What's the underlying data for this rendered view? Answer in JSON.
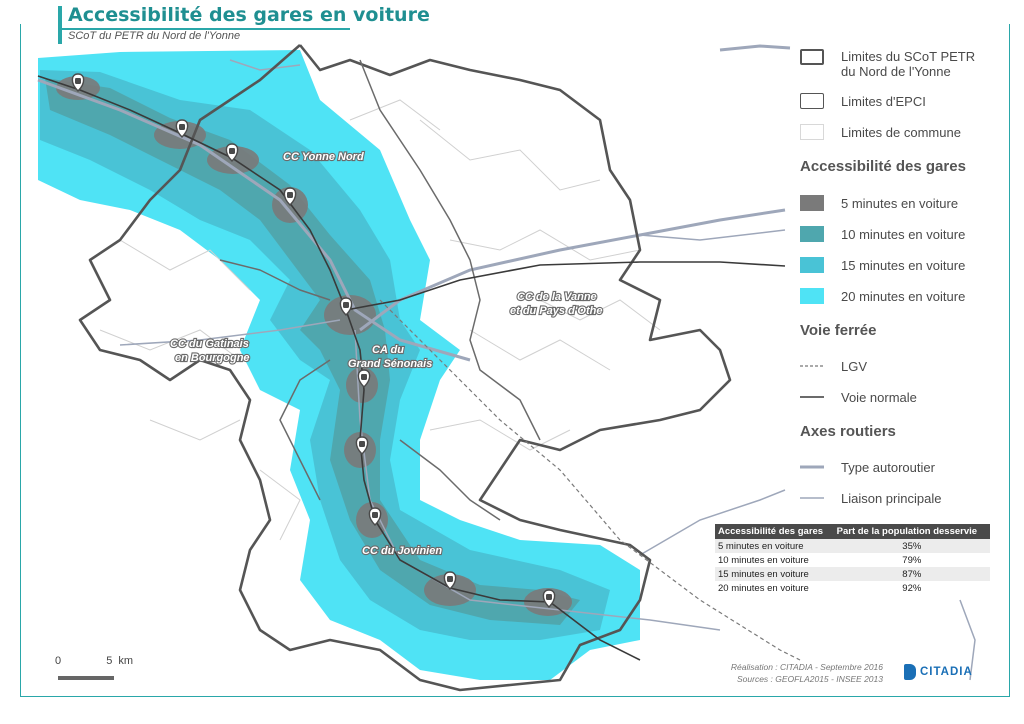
{
  "title": "Accessibilité des gares en voiture",
  "subtitle": "SCoT du PETR du Nord de l'Yonne",
  "colors": {
    "min5": "#7a7a7a",
    "min10": "#4fa7ae",
    "min15": "#49c3d6",
    "min20": "#4fe3f5",
    "boundary": "#555555",
    "commune": "#d0d0d0",
    "road": "#9ea7ba",
    "rail": "#3a3a3a",
    "accent": "#2aa7a9"
  },
  "map_labels": {
    "yonne_nord": "CC Yonne Nord",
    "vanne_line1": "CC de la Vanne",
    "vanne_line2": "et du Pays d'Othe",
    "gatinais_line1": "CC du Gatinais",
    "gatinais_line2": "en Bourgogne",
    "grand_line1": "CA du",
    "grand_line2": "Grand Sénonais",
    "jovinien": "CC du Jovinien"
  },
  "legend": {
    "scot_line1": "Limites du SCoT PETR",
    "scot_line2": "du Nord de l'Yonne",
    "epci": "Limites d'EPCI",
    "commune": "Limites de commune",
    "heading_access": "Accessibilité des gares",
    "min5": "5 minutes en voiture",
    "min10": "10 minutes en voiture",
    "min15": "15 minutes en voiture",
    "min20": "20 minutes en voiture",
    "heading_rail": "Voie ferrée",
    "lgv": "LGV",
    "normal": "Voie normale",
    "heading_roads": "Axes routiers",
    "autoroute": "Type autoroutier",
    "principale": "Liaison principale"
  },
  "table": {
    "col1": "Accessibilité des gares",
    "col2": "Part de la population desservie",
    "rows": [
      {
        "label": "5 minutes en voiture",
        "value": "35%"
      },
      {
        "label": "10 minutes en voiture",
        "value": "79%"
      },
      {
        "label": "15 minutes en voiture",
        "value": "87%"
      },
      {
        "label": "20 minutes en voiture",
        "value": "92%"
      }
    ]
  },
  "scale": {
    "zero": "0",
    "five": "5",
    "unit": "km"
  },
  "credits": {
    "line1": "Réalisation : CITADIA - Septembre 2016",
    "line2": "Sources : GEOFLA2015 - INSEE 2013"
  },
  "logo_text": "CITADIA",
  "station_icon": "train-icon"
}
